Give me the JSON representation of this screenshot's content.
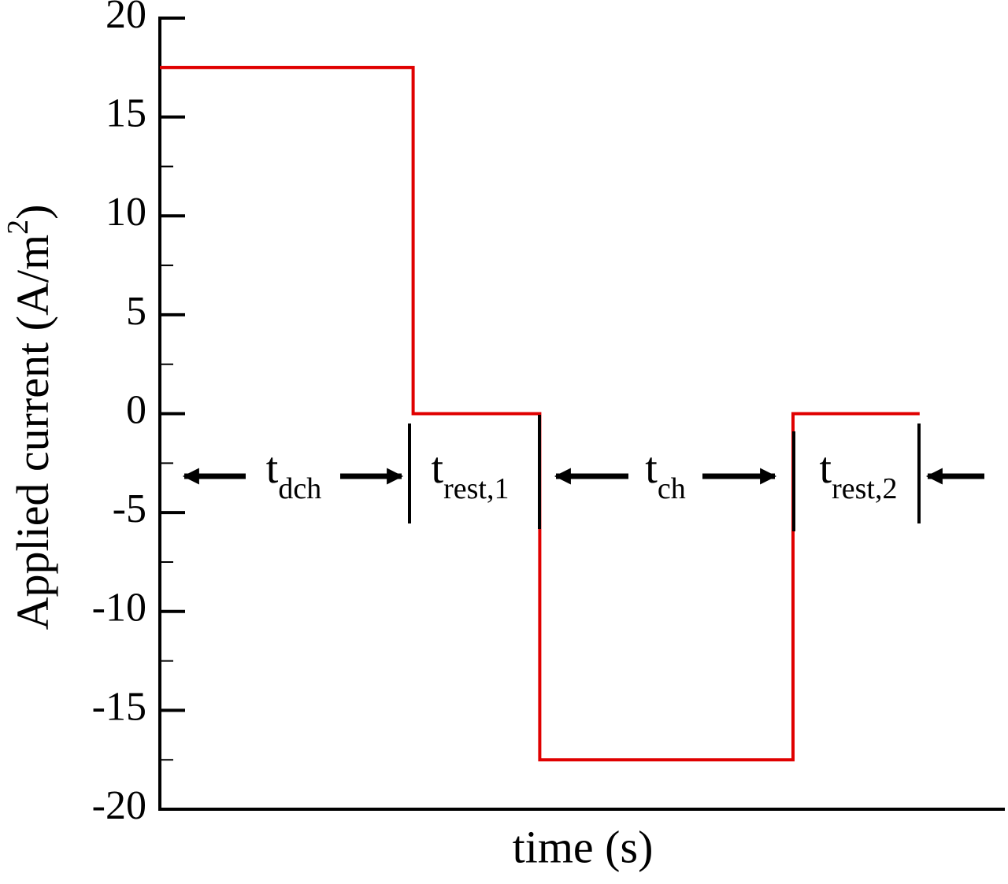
{
  "chart_data": {
    "type": "line",
    "xlabel": "time (s)",
    "ylabel": [
      "Applied current (A/m",
      "2",
      ")"
    ],
    "x": [
      0,
      30,
      30,
      45,
      45,
      75,
      75,
      90
    ],
    "xlim": [
      0,
      100
    ],
    "series": [
      {
        "color": "#e00000",
        "values": [
          17.5,
          17.5,
          0,
          0,
          -17.5,
          -17.5,
          0,
          0
        ]
      }
    ],
    "ylim": [
      -20,
      20
    ],
    "yticks": [
      -20,
      -15,
      -10,
      -5,
      0,
      5,
      10,
      15,
      20
    ],
    "yminorticks": [
      -17.5,
      -12.5,
      -7.5,
      -2.5,
      2.5,
      7.5,
      12.5,
      17.5
    ],
    "annotations": [
      {
        "text": "t",
        "sub": "dch"
      },
      {
        "text": "t",
        "sub": "rest,1"
      },
      {
        "text": "t",
        "sub": "ch"
      },
      {
        "text": "t",
        "sub": "rest,2"
      }
    ]
  }
}
